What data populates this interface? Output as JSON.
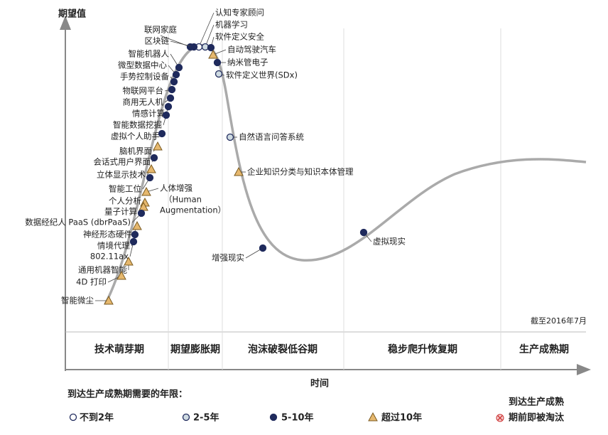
{
  "y_axis_label": "期望值",
  "x_axis_label": "时间",
  "note": "截至2016年7月",
  "phases": [
    "技术萌芽期",
    "期望膨胀期",
    "泡沫破裂低谷期",
    "稳步爬升恢复期",
    "生产成熟期"
  ],
  "nodes": [
    {
      "label": "认知专家顾问",
      "marker": 0
    },
    {
      "label": "机器学习",
      "marker": 1
    },
    {
      "label": "软件定义安全",
      "marker": 2
    },
    {
      "label": "自动驾驶汽车",
      "marker": 3
    },
    {
      "label": "纳米管电子",
      "marker": 2
    },
    {
      "label": "软件定义世界(SDx)",
      "marker": 1
    },
    {
      "label": "自然语言问答系统",
      "marker": 1
    },
    {
      "label": "企业知识分类与知识本体管理",
      "marker": 3
    },
    {
      "label": "增强现实",
      "marker": 2
    },
    {
      "label": "虚拟现实",
      "marker": 2
    },
    {
      "label": "联网家庭",
      "marker": 2
    },
    {
      "label": "区块链",
      "marker": 2
    },
    {
      "label": "智能机器人",
      "marker": 2
    },
    {
      "label": "微型数据中心",
      "marker": 2
    },
    {
      "label": "手势控制设备",
      "marker": 2
    },
    {
      "label": "物联网平台",
      "marker": 2
    },
    {
      "label": "商用无人机",
      "marker": 2
    },
    {
      "label": "情感计算",
      "marker": 2
    },
    {
      "label": "智能数据挖掘",
      "marker": 2
    },
    {
      "label": "虚拟个人助手",
      "marker": 2
    },
    {
      "label": "脑机界面",
      "marker": 3
    },
    {
      "label": "会话式用户界面",
      "marker": 2
    },
    {
      "label": "立体显示技术",
      "marker": 3
    },
    {
      "label": "智能工位",
      "marker": 2
    },
    {
      "label": "人体增强",
      "marker": 3,
      "note": [
        "（Human",
        "Augmentation）"
      ]
    },
    {
      "label": "个人分析",
      "marker": 3
    },
    {
      "label": "量子计算",
      "marker": 3
    },
    {
      "label": "数据经纪人 PaaS (dbrPaaS)",
      "marker": 2
    },
    {
      "label": "神经形态硬件",
      "marker": 3
    },
    {
      "label": "情境代理",
      "marker": 2
    },
    {
      "label": "802.11ax",
      "marker": 2
    },
    {
      "label": "通用机器智能",
      "marker": 3
    },
    {
      "label": "4D 打印",
      "marker": 3
    },
    {
      "label": "智能微尘",
      "marker": 3
    }
  ],
  "legend": {
    "title": "到达生产成熟期需要的年限：",
    "items": [
      "不到2年",
      "2-5年",
      "5-10年",
      "超过10年"
    ],
    "obsolete": [
      "到达生产成熟",
      "期前即被淘汰"
    ]
  }
}
